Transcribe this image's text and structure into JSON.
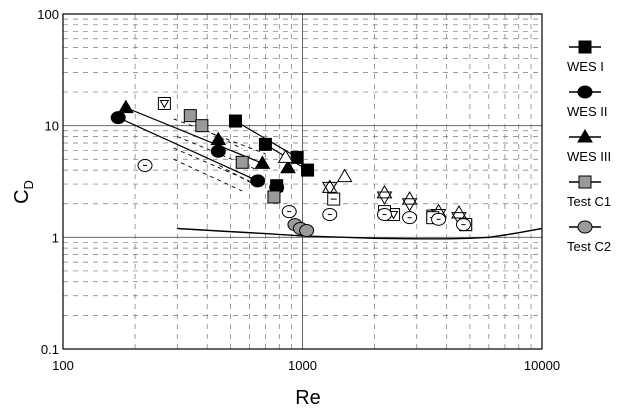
{
  "chart_data": {
    "type": "scatter",
    "xlabel": "Re",
    "ylabel": "C",
    "ylabel_sub": "D",
    "x_scale": "log",
    "y_scale": "log",
    "xlim": [
      100,
      10000
    ],
    "ylim": [
      0.1,
      100
    ],
    "x_ticks": [
      100,
      1000,
      10000
    ],
    "x_tick_labels": [
      "100",
      "1000",
      "10000"
    ],
    "y_ticks": [
      0.1,
      1,
      10,
      100
    ],
    "y_tick_labels": [
      "0.1",
      "1",
      "10",
      "100"
    ],
    "grid": true,
    "legend_position": "right",
    "series": [
      {
        "name": "WES I",
        "marker": "square",
        "fill": "#000000",
        "lines": [
          [
            0,
            2
          ],
          [
            1,
            3
          ]
        ],
        "points": [
          [
            525,
            11
          ],
          [
            700,
            6.8
          ],
          [
            950,
            5.2
          ],
          [
            1050,
            4.0
          ],
          [
            780,
            2.9
          ]
        ]
      },
      {
        "name": "WES II",
        "marker": "circle",
        "fill": "#000000",
        "lines": [
          [
            0,
            2
          ]
        ],
        "points": [
          [
            170,
            11.8
          ],
          [
            445,
            5.9
          ],
          [
            650,
            3.2
          ],
          [
            780,
            2.8
          ]
        ]
      },
      {
        "name": "WES III",
        "marker": "triangle",
        "fill": "#000000",
        "lines": [
          [
            0,
            2
          ]
        ],
        "points": [
          [
            183,
            14.5
          ],
          [
            445,
            7.5
          ],
          [
            680,
            4.6
          ],
          [
            870,
            4.2
          ]
        ]
      },
      {
        "name": "Test  C1",
        "marker": "square",
        "fill": "#9a9a9a",
        "lines": [],
        "points": [
          [
            340,
            12.3
          ],
          [
            380,
            10.0
          ],
          [
            560,
            4.7
          ],
          [
            760,
            2.3
          ]
        ]
      },
      {
        "name": "Test  C2",
        "marker": "circle",
        "fill": "#9a9a9a",
        "lines": [],
        "points": [
          [
            930,
            1.3
          ],
          [
            980,
            1.2
          ],
          [
            1040,
            1.15
          ]
        ]
      },
      {
        "marker": "open-square-triangle",
        "fill": "none",
        "lines": [],
        "points": [
          [
            265,
            15.8
          ],
          [
            2400,
            1.6
          ],
          [
            3500,
            1.55
          ],
          [
            4800,
            1.3
          ]
        ]
      },
      {
        "marker": "open-triangle",
        "fill": "none",
        "lines": [],
        "points": [
          [
            850,
            5.2
          ],
          [
            1300,
            2.8
          ],
          [
            1500,
            3.5
          ],
          [
            2200,
            2.5
          ],
          [
            2800,
            2.2
          ],
          [
            3700,
            1.7
          ],
          [
            4500,
            1.65
          ]
        ]
      },
      {
        "marker": "open-triangle-down",
        "fill": "none",
        "lines": [],
        "points": [
          [
            1300,
            2.8
          ],
          [
            2200,
            2.3
          ],
          [
            2800,
            2.0
          ],
          [
            3700,
            1.6
          ],
          [
            4500,
            1.5
          ]
        ]
      },
      {
        "marker": "open-square",
        "fill": "none",
        "lines": [],
        "points": [
          [
            1350,
            2.2
          ],
          [
            2200,
            1.7
          ],
          [
            3500,
            1.5
          ],
          [
            4800,
            1.3
          ]
        ]
      },
      {
        "marker": "open-circle-dot",
        "fill": "none",
        "lines": [],
        "points": [
          [
            220,
            4.4
          ],
          [
            880,
            1.7
          ],
          [
            1300,
            1.6
          ],
          [
            2200,
            1.6
          ],
          [
            2800,
            1.5
          ],
          [
            3700,
            1.45
          ],
          [
            4700,
            1.3
          ]
        ]
      }
    ],
    "dashed_trend_lines": [
      [
        [
          290,
          11.5
        ],
        [
          700,
          5.6
        ]
      ],
      [
        [
          300,
          8.0
        ],
        [
          650,
          4.0
        ]
      ],
      [
        [
          290,
          6.3
        ],
        [
          600,
          3.2
        ]
      ],
      [
        [
          290,
          5.0
        ],
        [
          560,
          2.6
        ]
      ],
      [
        [
          450,
          4.4
        ],
        [
          660,
          2.8
        ]
      ],
      [
        [
          370,
          9.8
        ],
        [
          560,
          6.2
        ]
      ]
    ],
    "reference_curve": [
      [
        300,
        1.2
      ],
      [
        450,
        1.14
      ],
      [
        700,
        1.08
      ],
      [
        1000,
        1.03
      ],
      [
        1500,
        1.0
      ],
      [
        2000,
        0.98
      ],
      [
        3000,
        0.97
      ],
      [
        4000,
        0.97
      ],
      [
        5000,
        0.98
      ],
      [
        6000,
        1.0
      ],
      [
        7000,
        1.05
      ],
      [
        8000,
        1.1
      ],
      [
        10000,
        1.2
      ]
    ]
  }
}
